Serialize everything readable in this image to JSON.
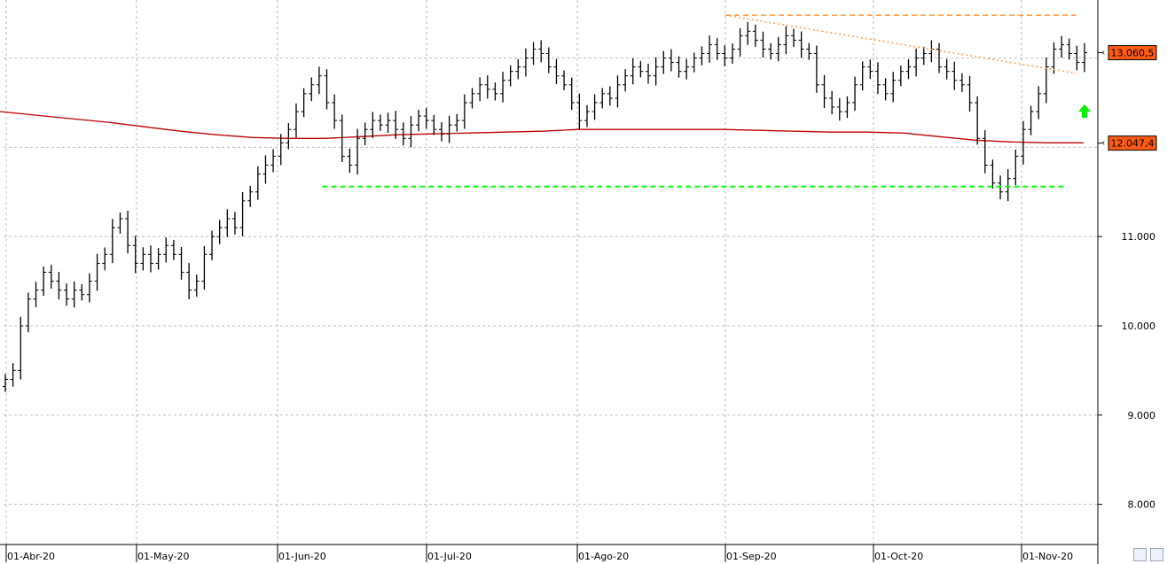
{
  "chart_data": {
    "type": "ohlc",
    "x_tick_labels": [
      "01-Abr-20",
      "01-May-20",
      "01-Jun-20",
      "01-Jul-20",
      "01-Ago-20",
      "01-Sep-20",
      "01-Oct-20",
      "01-Nov-20"
    ],
    "y_tick_labels": [
      "8.000",
      "9.000",
      "10.000",
      "11.000"
    ],
    "ylim": [
      7550,
      13650
    ],
    "grid": true,
    "price_tags": [
      {
        "label": "13.060,5",
        "value": 13060,
        "color": "#ff5a14"
      },
      {
        "label": "12.047,4",
        "value": 12047,
        "color": "#ff5a14"
      }
    ],
    "moving_average_color": "#c00000",
    "trend_lines": [
      {
        "kind": "resistance",
        "color": "#ffa050",
        "from": [
          "01-Sep-20",
          13480
        ],
        "to": [
          "12-Nov-20",
          13480
        ]
      },
      {
        "kind": "downtrend",
        "color": "#ffa050",
        "from": [
          "01-Sep-20",
          13480
        ],
        "to": [
          "12-Nov-20",
          12830
        ]
      },
      {
        "kind": "support",
        "color": "#00ff00",
        "from": [
          "10-Jun-20",
          11560
        ],
        "to": [
          "10-Nov-20",
          11560
        ]
      }
    ],
    "signal_arrow": {
      "direction": "up",
      "color": "#00ee00",
      "value": 12400
    },
    "bar_color": "#000000",
    "closes": [
      9400,
      9500,
      10000,
      10300,
      10400,
      10600,
      10500,
      10400,
      10300,
      10400,
      10350,
      10500,
      10700,
      10800,
      11100,
      11200,
      10900,
      10700,
      10800,
      10700,
      10800,
      10900,
      10800,
      10600,
      10400,
      10500,
      10800,
      11000,
      11100,
      11200,
      11100,
      11400,
      11500,
      11700,
      11800,
      11900,
      12050,
      12200,
      12400,
      12600,
      12700,
      12800,
      12500,
      12300,
      11900,
      11800,
      12100,
      12200,
      12300,
      12250,
      12300,
      12200,
      12100,
      12250,
      12350,
      12300,
      12200,
      12150,
      12250,
      12300,
      12500,
      12600,
      12700,
      12650,
      12600,
      12750,
      12850,
      12900,
      13000,
      13100,
      13050,
      12900,
      12800,
      12700,
      12500,
      12300,
      12400,
      12500,
      12600,
      12550,
      12700,
      12800,
      12900,
      12850,
      12800,
      12900,
      13000,
      12950,
      12850,
      12900,
      13000,
      13050,
      13150,
      13050,
      13000,
      13100,
      13250,
      13300,
      13200,
      13100,
      13050,
      13150,
      13250,
      13200,
      13100,
      13050,
      12700,
      12550,
      12450,
      12400,
      12500,
      12700,
      12900,
      12850,
      12700,
      12600,
      12750,
      12850,
      12900,
      13000,
      13050,
      13100,
      12900,
      12850,
      12750,
      12700,
      12500,
      12100,
      11800,
      11600,
      11500,
      11650,
      11900,
      12200,
      12400,
      12600,
      12900,
      13100,
      13150,
      13050,
      12950,
      13060
    ],
    "moving_average": [
      12400,
      12360,
      12320,
      12280,
      12230,
      12180,
      12140,
      12110,
      12100,
      12100,
      12120,
      12140,
      12150,
      12160,
      12170,
      12180,
      12200,
      12200,
      12200,
      12200,
      12200,
      12190,
      12180,
      12170,
      12170,
      12160,
      12120,
      12080,
      12060,
      12050,
      12050
    ]
  },
  "toolbar": {
    "icons": [
      "refresh-icon",
      "save-icon"
    ]
  }
}
